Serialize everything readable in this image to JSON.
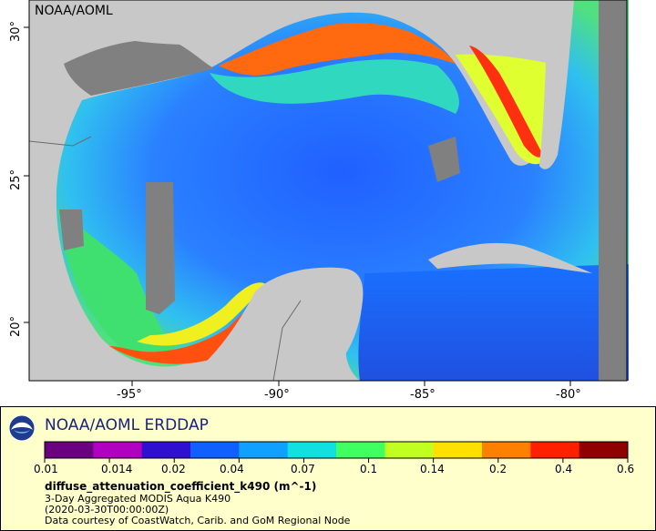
{
  "map": {
    "watermark": "NOAA/AOML",
    "x_ticks": [
      "-95°",
      "-90°",
      "-85°",
      "-80°"
    ],
    "y_ticks": [
      "30°",
      "25°",
      "20°"
    ],
    "colors": {
      "land": "#c8c8c8",
      "no_data": "#808080",
      "border": "#6b6b6b"
    }
  },
  "legend": {
    "title": "NOAA/AOML ERDDAP",
    "colorbar_ticks": [
      "0.01",
      "0.014",
      "0.02",
      "0.04",
      "0.07",
      "0.1",
      "0.14",
      "0.2",
      "0.4",
      "0.6"
    ],
    "colorbar_colors": [
      "#6a0080",
      "#b000c0",
      "#3010d0",
      "#1060ff",
      "#10a0ff",
      "#10e0e0",
      "#40ff60",
      "#c0ff20",
      "#ffe000",
      "#ff8000",
      "#ff2000",
      "#900000"
    ],
    "variable": "diffuse_attenuation_coefficient_k490 (m^-1)",
    "dataset": "3-Day Aggregated MODIS Aqua K490",
    "time": "(2020-03-30T00:00:00Z)",
    "credit": "Data courtesy of CoastWatch, Carib. and GoM Regional Node",
    "logo": "noaa-logo-icon"
  }
}
